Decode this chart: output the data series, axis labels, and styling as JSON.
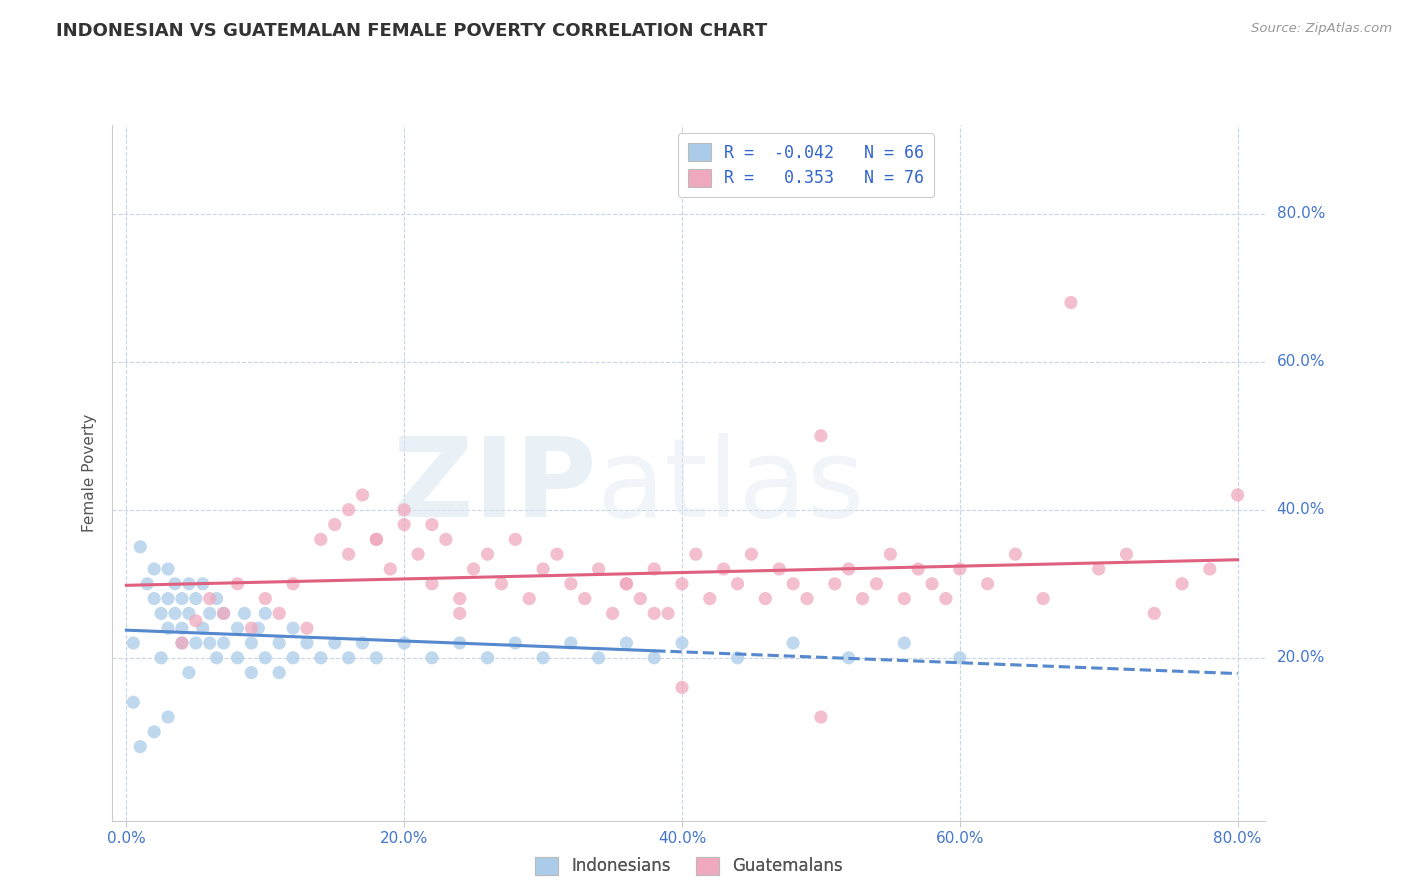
{
  "title": "INDONESIAN VS GUATEMALAN FEMALE POVERTY CORRELATION CHART",
  "source": "Source: ZipAtlas.com",
  "ylabel": "Female Poverty",
  "xlim": [
    -0.01,
    0.82
  ],
  "ylim": [
    -0.02,
    0.92
  ],
  "xtick_vals": [
    0.0,
    0.2,
    0.4,
    0.6,
    0.8
  ],
  "ytick_vals": [
    0.2,
    0.4,
    0.6,
    0.8
  ],
  "indonesian_color": "#aacce8",
  "guatemalan_color": "#f0a8be",
  "indonesian_line_color": "#5588cc",
  "guatemalan_line_color": "#e06080",
  "R_indonesian": -0.042,
  "N_indonesian": 66,
  "R_guatemalan": 0.353,
  "N_guatemalan": 76,
  "background_color": "#ffffff",
  "grid_color": "#c8d4e8",
  "tick_label_color": "#4477cc",
  "indonesian_x": [
    0.005,
    0.01,
    0.015,
    0.02,
    0.02,
    0.025,
    0.025,
    0.03,
    0.03,
    0.03,
    0.035,
    0.035,
    0.04,
    0.04,
    0.04,
    0.045,
    0.045,
    0.045,
    0.05,
    0.05,
    0.055,
    0.055,
    0.06,
    0.06,
    0.065,
    0.065,
    0.07,
    0.07,
    0.08,
    0.08,
    0.085,
    0.09,
    0.09,
    0.095,
    0.1,
    0.1,
    0.11,
    0.11,
    0.12,
    0.12,
    0.13,
    0.14,
    0.15,
    0.16,
    0.17,
    0.18,
    0.2,
    0.22,
    0.24,
    0.26,
    0.28,
    0.3,
    0.32,
    0.34,
    0.36,
    0.38,
    0.4,
    0.44,
    0.48,
    0.52,
    0.56,
    0.6,
    0.005,
    0.01,
    0.02,
    0.03
  ],
  "indonesian_y": [
    0.22,
    0.35,
    0.3,
    0.28,
    0.32,
    0.2,
    0.26,
    0.24,
    0.28,
    0.32,
    0.26,
    0.3,
    0.24,
    0.28,
    0.22,
    0.26,
    0.3,
    0.18,
    0.22,
    0.28,
    0.24,
    0.3,
    0.22,
    0.26,
    0.2,
    0.28,
    0.22,
    0.26,
    0.24,
    0.2,
    0.26,
    0.22,
    0.18,
    0.24,
    0.2,
    0.26,
    0.22,
    0.18,
    0.24,
    0.2,
    0.22,
    0.2,
    0.22,
    0.2,
    0.22,
    0.2,
    0.22,
    0.2,
    0.22,
    0.2,
    0.22,
    0.2,
    0.22,
    0.2,
    0.22,
    0.2,
    0.22,
    0.2,
    0.22,
    0.2,
    0.22,
    0.2,
    0.14,
    0.08,
    0.1,
    0.12
  ],
  "guatemalan_x": [
    0.04,
    0.05,
    0.06,
    0.07,
    0.08,
    0.09,
    0.1,
    0.11,
    0.12,
    0.13,
    0.14,
    0.15,
    0.16,
    0.17,
    0.18,
    0.19,
    0.2,
    0.21,
    0.22,
    0.23,
    0.24,
    0.25,
    0.26,
    0.27,
    0.28,
    0.29,
    0.3,
    0.31,
    0.32,
    0.33,
    0.34,
    0.35,
    0.36,
    0.37,
    0.38,
    0.39,
    0.4,
    0.41,
    0.42,
    0.43,
    0.44,
    0.45,
    0.46,
    0.47,
    0.48,
    0.49,
    0.5,
    0.51,
    0.52,
    0.53,
    0.54,
    0.55,
    0.56,
    0.57,
    0.58,
    0.59,
    0.6,
    0.62,
    0.64,
    0.66,
    0.68,
    0.7,
    0.72,
    0.74,
    0.76,
    0.78,
    0.8,
    0.16,
    0.18,
    0.2,
    0.22,
    0.24,
    0.36,
    0.38,
    0.4,
    0.5
  ],
  "guatemalan_y": [
    0.22,
    0.25,
    0.28,
    0.26,
    0.3,
    0.24,
    0.28,
    0.26,
    0.3,
    0.24,
    0.36,
    0.38,
    0.34,
    0.42,
    0.36,
    0.32,
    0.38,
    0.34,
    0.3,
    0.36,
    0.28,
    0.32,
    0.34,
    0.3,
    0.36,
    0.28,
    0.32,
    0.34,
    0.3,
    0.28,
    0.32,
    0.26,
    0.3,
    0.28,
    0.32,
    0.26,
    0.3,
    0.34,
    0.28,
    0.32,
    0.3,
    0.34,
    0.28,
    0.32,
    0.3,
    0.28,
    0.5,
    0.3,
    0.32,
    0.28,
    0.3,
    0.34,
    0.28,
    0.32,
    0.3,
    0.28,
    0.32,
    0.3,
    0.34,
    0.28,
    0.68,
    0.32,
    0.34,
    0.26,
    0.3,
    0.32,
    0.42,
    0.4,
    0.36,
    0.4,
    0.38,
    0.26,
    0.3,
    0.26,
    0.16,
    0.12
  ]
}
